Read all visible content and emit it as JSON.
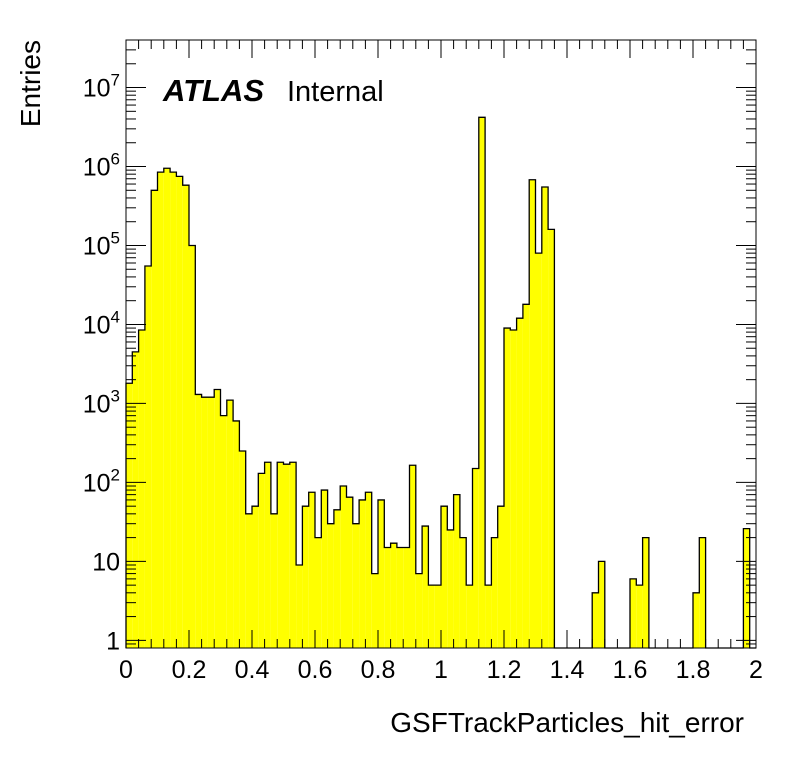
{
  "chart_data": {
    "type": "bar",
    "subtype": "histogram",
    "title": "",
    "xlabel": "GSFTrackParticles_hit_error",
    "ylabel": "Entries",
    "xlim": [
      0,
      2
    ],
    "ylim": [
      0.8,
      40000000
    ],
    "log_y": true,
    "grid": false,
    "fill_color": "#ffff00",
    "line_color": "#000000",
    "annotation": {
      "experiment": "ATLAS",
      "status": "Internal"
    },
    "x_ticks": [
      {
        "v": 0,
        "label": "0"
      },
      {
        "v": 0.2,
        "label": "0.2"
      },
      {
        "v": 0.4,
        "label": "0.4"
      },
      {
        "v": 0.6,
        "label": "0.6"
      },
      {
        "v": 0.8,
        "label": "0.8"
      },
      {
        "v": 1,
        "label": "1"
      },
      {
        "v": 1.2,
        "label": "1.2"
      },
      {
        "v": 1.4,
        "label": "1.4"
      },
      {
        "v": 1.6,
        "label": "1.6"
      },
      {
        "v": 1.8,
        "label": "1.8"
      },
      {
        "v": 2,
        "label": "2"
      }
    ],
    "y_ticks": [
      {
        "v": 1,
        "base": "1",
        "exp": ""
      },
      {
        "v": 10,
        "base": "10",
        "exp": ""
      },
      {
        "v": 100,
        "base": "10",
        "exp": "2"
      },
      {
        "v": 1000,
        "base": "10",
        "exp": "3"
      },
      {
        "v": 10000,
        "base": "10",
        "exp": "4"
      },
      {
        "v": 100000,
        "base": "10",
        "exp": "5"
      },
      {
        "v": 1000000,
        "base": "10",
        "exp": "6"
      },
      {
        "v": 10000000,
        "base": "10",
        "exp": "7"
      }
    ],
    "bin_edges": {
      "start": 0,
      "end": 2,
      "count": 100
    },
    "values": [
      1800,
      4500,
      8500,
      55000,
      500000,
      850000,
      950000,
      850000,
      750000,
      580000,
      100000,
      1300,
      1200,
      1200,
      1500,
      700,
      1100,
      600,
      250,
      40,
      50,
      130,
      180,
      40,
      180,
      170,
      180,
      9,
      50,
      75,
      20,
      80,
      30,
      45,
      90,
      65,
      30,
      60,
      75,
      7,
      60,
      15,
      17,
      15,
      15,
      165,
      7,
      28,
      5,
      5,
      50,
      25,
      70,
      20,
      5,
      150,
      4200000,
      5,
      20,
      50,
      9000,
      8500,
      12000,
      18000,
      680000,
      80000,
      550000,
      160000,
      0,
      0,
      0,
      0,
      0,
      0,
      4,
      10,
      0,
      0,
      0,
      0,
      6,
      5,
      20,
      0,
      0,
      0,
      0,
      0,
      0,
      0,
      4,
      20,
      0,
      0,
      0,
      0,
      0,
      0,
      26,
      0
    ]
  }
}
